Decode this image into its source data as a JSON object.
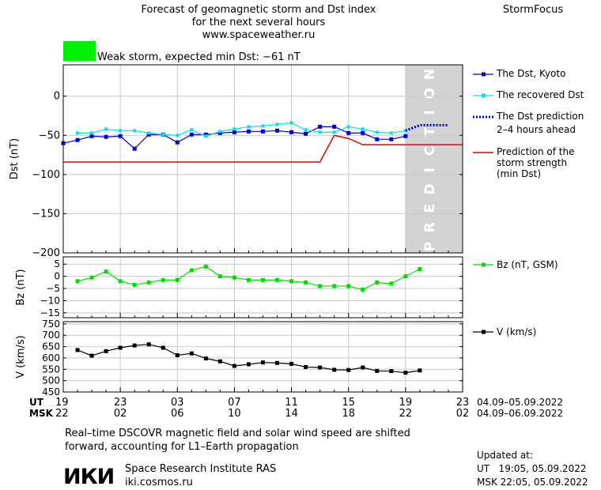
{
  "header": {
    "title_lines": [
      "Forecast of geomagnetic storm and Dst index",
      "for the next several hours",
      "www.spaceweather.ru"
    ],
    "brand": "StormFocus",
    "storm_label": "Weak storm, expected min Dst: −61 nT",
    "storm_color": "#00ee00"
  },
  "prediction_text": "PREDICTION",
  "time_axis": {
    "ut_label": "UT",
    "msk_label": "MSK",
    "ut_ticks": [
      "19",
      "23",
      "03",
      "07",
      "11",
      "15",
      "19",
      "23"
    ],
    "msk_ticks": [
      "22",
      "02",
      "06",
      "10",
      "14",
      "18",
      "22",
      "02"
    ],
    "ut_range": "04.09–05.09.2022",
    "msk_range": "04.09–06.09.2022"
  },
  "footer": {
    "note_lines": [
      "Real–time DSCOVR magnetic field and solar wind speed are shifted",
      "forward, accounting for L1–Earth propagation"
    ],
    "org_logo_text": "ИКИ",
    "org_name": "Space Research Institute RAS",
    "org_site": "iki.cosmos.ru",
    "updated_label": "Updated at:",
    "updated_ut": "UT   19:05, 05.09.2022",
    "updated_msk": "MSK 22:05, 05.09.2022"
  },
  "colors": {
    "dst_kyoto": "#0000cc",
    "dst_recovered": "#00e5e5",
    "dst_prediction": "#0000cc",
    "storm_strength": "#dd0000",
    "bz": "#00dd00",
    "v": "#000000",
    "prediction_band": "#d3d3d3"
  },
  "chart_data": [
    {
      "type": "line",
      "ylabel": "Dst (nT)",
      "ylim": [
        -200,
        40
      ],
      "yticks": [
        0,
        -50,
        -100,
        -150,
        -200
      ],
      "x_unit": "hours from 19 UT 04.09.2022",
      "xlim": [
        0,
        28
      ],
      "prediction_start_hour": 24,
      "series": [
        {
          "name": "The Dst, Kyoto",
          "style": "line-square",
          "x": [
            0,
            1,
            2,
            3,
            4,
            5,
            6,
            7,
            8,
            9,
            10,
            11,
            12,
            13,
            14,
            15,
            16,
            17,
            18,
            19,
            20,
            21,
            22,
            23,
            24
          ],
          "y": [
            -60,
            -56,
            -51,
            -52,
            -51,
            -67,
            -49,
            -49,
            -59,
            -49,
            -49,
            -47,
            -46,
            -45,
            -45,
            -44,
            -46,
            -48,
            -39,
            -39,
            -47,
            -47,
            -55,
            -55,
            -51
          ]
        },
        {
          "name": "The recovered Dst",
          "style": "line-square",
          "x": [
            1,
            2,
            3,
            4,
            5,
            6,
            7,
            8,
            9,
            10,
            11,
            12,
            13,
            14,
            15,
            16,
            17,
            18,
            19,
            20,
            21,
            22,
            23,
            24
          ],
          "y": [
            -47,
            -47,
            -42,
            -44,
            -44,
            -47,
            -49,
            -50,
            -43,
            -51,
            -45,
            -42,
            -39,
            -38,
            -36,
            -34,
            -43,
            -46,
            -46,
            -39,
            -42,
            -46,
            -47,
            -44
          ]
        },
        {
          "name": "The Dst prediction 2–4 hours ahead",
          "style": "dotted",
          "x": [
            24,
            25,
            26,
            27
          ],
          "y": [
            -44,
            -37,
            -37,
            -37
          ]
        },
        {
          "name": "Prediction of the storm strength (min Dst)",
          "style": "step",
          "x": [
            0,
            18,
            19,
            20,
            21,
            22,
            28
          ],
          "y": [
            -84,
            -84,
            -50,
            -54,
            -62,
            -62,
            -62
          ]
        }
      ],
      "legend": [
        "The Dst, Kyoto",
        "The recovered Dst",
        "The Dst prediction",
        "2–4 hours ahead",
        "Prediction of the",
        "storm strength",
        "(min Dst)"
      ]
    },
    {
      "type": "line",
      "ylabel": "Bz (nT)",
      "ylim": [
        -17,
        8
      ],
      "yticks": [
        5,
        0,
        -5,
        -10,
        -15
      ],
      "series": [
        {
          "name": "Bz (nT, GSM)",
          "x": [
            1,
            2,
            3,
            4,
            5,
            6,
            7,
            8,
            9,
            10,
            11,
            12,
            13,
            14,
            15,
            16,
            17,
            18,
            19,
            20,
            21,
            22,
            23,
            24,
            25
          ],
          "y": [
            -2,
            -0.5,
            2,
            -2,
            -3.5,
            -2.5,
            -1.5,
            -1.5,
            2.5,
            4,
            0,
            -0.5,
            -1.5,
            -1.5,
            -1.5,
            -2,
            -2.5,
            -4,
            -4,
            -4,
            -5.5,
            -2.5,
            -3,
            0,
            3
          ]
        }
      ],
      "legend": [
        "Bz (nT, GSM)"
      ]
    },
    {
      "type": "line",
      "ylabel": "V (km/s)",
      "ylim": [
        450,
        760
      ],
      "yticks": [
        750,
        700,
        650,
        600,
        550,
        500,
        450
      ],
      "series": [
        {
          "name": "V (km/s)",
          "x": [
            1,
            2,
            3,
            4,
            5,
            6,
            7,
            8,
            9,
            10,
            11,
            12,
            13,
            14,
            15,
            16,
            17,
            18,
            19,
            20,
            21,
            22,
            23,
            24,
            25
          ],
          "y": [
            635,
            610,
            630,
            645,
            655,
            660,
            645,
            612,
            620,
            598,
            585,
            565,
            572,
            580,
            578,
            574,
            560,
            558,
            548,
            547,
            558,
            543,
            542,
            535,
            545
          ]
        }
      ],
      "legend": [
        "V (km/s)"
      ]
    }
  ]
}
